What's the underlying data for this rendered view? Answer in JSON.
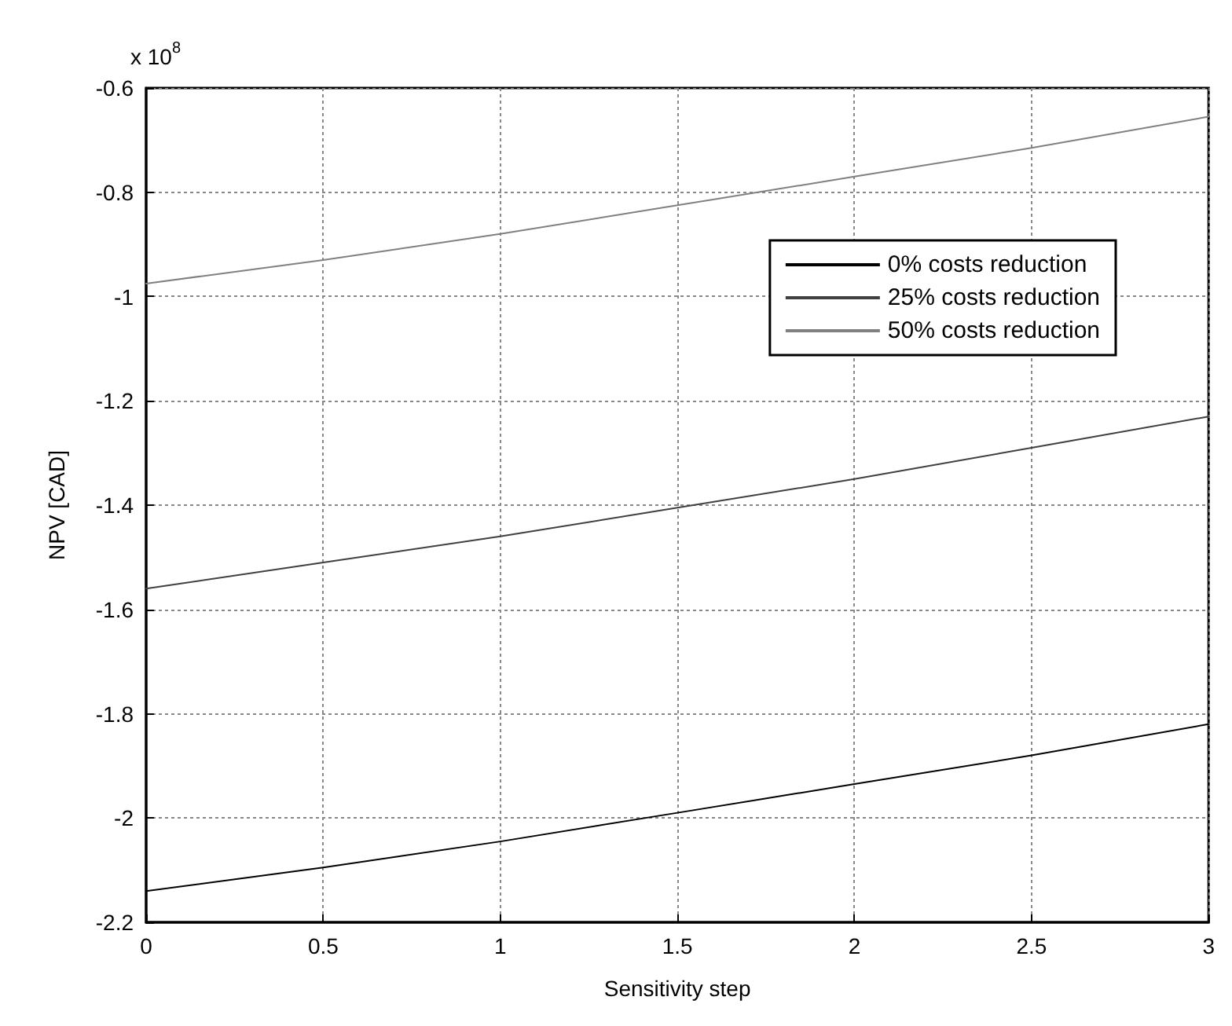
{
  "chart_data": {
    "type": "line",
    "xlabel": "Sensitivity step",
    "ylabel": "NPV [CAD]",
    "annotations": [
      "x 10$^{8}$"
    ],
    "x": [
      0,
      0.5,
      1,
      1.5,
      2,
      2.5,
      3
    ],
    "series": [
      {
        "name": "0% costs reduction",
        "color": "#000000",
        "values": [
          -2.14,
          -2.095,
          -2.045,
          -1.99,
          -1.935,
          -1.88,
          -1.82
        ]
      },
      {
        "name": "25% costs reduction",
        "color": "#404040",
        "values": [
          -1.56,
          -1.51,
          -1.46,
          -1.405,
          -1.35,
          -1.29,
          -1.23
        ]
      },
      {
        "name": "50% costs reduction",
        "color": "#808080",
        "values": [
          -0.975,
          -0.93,
          -0.88,
          -0.825,
          -0.77,
          -0.715,
          -0.655
        ]
      }
    ],
    "xlim": [
      0,
      3
    ],
    "xticks": [
      0,
      0.5,
      1,
      1.5,
      2,
      2.5,
      3
    ],
    "ylim": [
      -2.2,
      -0.6
    ],
    "yticks": [
      -2.2,
      -2,
      -1.8,
      -1.6,
      -1.4,
      -1.2,
      -1,
      -0.8,
      -0.6
    ],
    "grid": true,
    "legend": "top right",
    "marker": "none",
    "line_style": "solid"
  }
}
